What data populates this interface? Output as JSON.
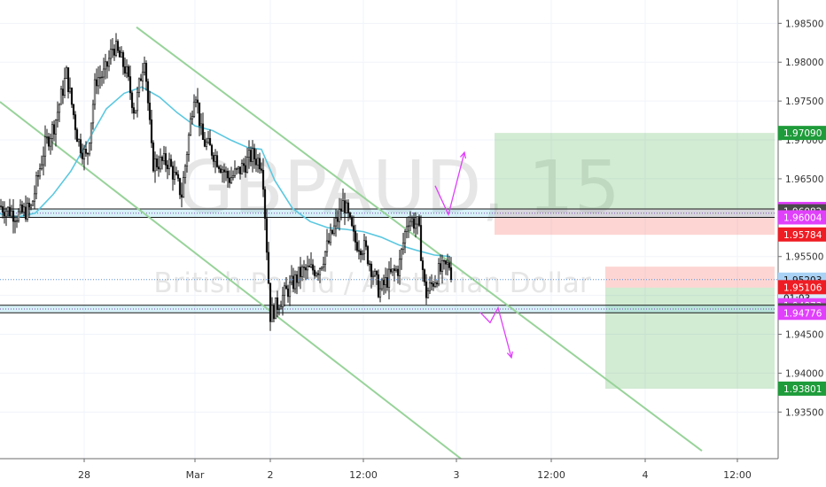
{
  "chart_data": {
    "type": "candlestick",
    "symbol_watermark": "GBPAUD, 15",
    "name_watermark": "British Pound / Australian Dollar",
    "x_axis": {
      "labels": [
        {
          "text": "28",
          "t": 95
        },
        {
          "text": "Mar",
          "t": 220
        },
        {
          "text": "2",
          "t": 305
        },
        {
          "text": "12:00",
          "t": 410
        },
        {
          "text": "3",
          "t": 515
        },
        {
          "text": "12:00",
          "t": 622
        },
        {
          "text": "4",
          "t": 728
        },
        {
          "text": "12:00",
          "t": 832
        }
      ],
      "range": [
        0,
        878
      ]
    },
    "y_axis": {
      "range": [
        1.929,
        1.988
      ],
      "ticks": [
        "1.98500",
        "1.98000",
        "1.97500",
        "1.97000",
        "1.96500",
        "1.96000",
        "1.95500",
        "1.95000",
        "1.94500",
        "1.94000",
        "1.93500"
      ]
    },
    "price_badges": [
      {
        "text": "1.97090",
        "value": 1.9709,
        "bg": "#1e9b3a",
        "fg": "#ffffff"
      },
      {
        "text": "1.96112",
        "value": 1.96112,
        "bg": "#e040fb",
        "fg": "#ffffff"
      },
      {
        "text": "1.96082",
        "value": 1.96082,
        "bg": "#4a4a4a",
        "fg": "#ffffff"
      },
      {
        "text": "1.96004",
        "value": 1.96004,
        "bg": "#e040fb",
        "fg": "#ffffff"
      },
      {
        "text": "1.95784",
        "value": 1.95784,
        "bg": "#ef1c24",
        "fg": "#ffffff"
      },
      {
        "text": "1.95203",
        "value": 1.95203,
        "bg": "#a9d2f5",
        "fg": "#111111"
      },
      {
        "text": "01:03",
        "value": 1.9497,
        "bg": "#d9ecfb",
        "fg": "#111111"
      },
      {
        "text": "1.95106",
        "value": 1.95106,
        "bg": "#ef1c24",
        "fg": "#ffffff"
      },
      {
        "text": "1.94873",
        "value": 1.94873,
        "bg": "#e040fb",
        "fg": "#ffffff"
      },
      {
        "text": "1.94808",
        "value": 1.94808,
        "bg": "#4a4a4a",
        "fg": "#ffffff"
      },
      {
        "text": "1.94776",
        "value": 1.94776,
        "bg": "#e040fb",
        "fg": "#ffffff"
      },
      {
        "text": "1.93801",
        "value": 1.93801,
        "bg": "#1e9b3a",
        "fg": "#ffffff"
      }
    ],
    "zones": [
      {
        "kind": "profit",
        "t1": 558,
        "t2": 874,
        "p1": 1.9709,
        "p2": 1.9611
      },
      {
        "kind": "stop",
        "t1": 558,
        "t2": 874,
        "p1": 1.9611,
        "p2": 1.9578
      },
      {
        "kind": "stop",
        "t1": 683,
        "t2": 874,
        "p1": 1.9537,
        "p2": 1.951
      },
      {
        "kind": "profit",
        "t1": 683,
        "t2": 874,
        "p1": 1.951,
        "p2": 1.938
      }
    ],
    "support_resistance_bands": [
      {
        "p_top": 1.96112,
        "p_bottom": 1.96004,
        "t1": 0,
        "t2": 874
      },
      {
        "p_top": 1.94873,
        "p_bottom": 1.94776,
        "t1": 0,
        "t2": 874
      }
    ],
    "trend_lines": [
      {
        "t1": 154,
        "p1": 1.9845,
        "t2": 792,
        "p2": 1.93
      },
      {
        "t1": 0,
        "p1": 1.9749,
        "t2": 520,
        "p2": 1.929
      }
    ],
    "current_price": 1.95203,
    "projection_arrows": [
      {
        "points": [
          [
            491,
            1.9641
          ],
          [
            506,
            1.9604
          ],
          [
            524,
            1.9684
          ]
        ]
      },
      {
        "points": [
          [
            542,
            1.9478
          ],
          [
            553,
            1.9465
          ],
          [
            562,
            1.9484
          ],
          [
            577,
            1.942
          ]
        ]
      }
    ],
    "moving_average": {
      "color": "#5bc8e0",
      "points": [
        [
          0,
          1.9605
        ],
        [
          20,
          1.9601
        ],
        [
          40,
          1.9606
        ],
        [
          60,
          1.963
        ],
        [
          80,
          1.966
        ],
        [
          100,
          1.97
        ],
        [
          120,
          1.974
        ],
        [
          140,
          1.976
        ],
        [
          160,
          1.9768
        ],
        [
          180,
          1.9755
        ],
        [
          200,
          1.9735
        ],
        [
          220,
          1.9718
        ],
        [
          240,
          1.9712
        ],
        [
          260,
          1.97
        ],
        [
          280,
          1.969
        ],
        [
          295,
          1.9688
        ],
        [
          310,
          1.9648
        ],
        [
          330,
          1.9612
        ],
        [
          350,
          1.9595
        ],
        [
          370,
          1.9587
        ],
        [
          390,
          1.9585
        ],
        [
          410,
          1.9582
        ],
        [
          430,
          1.9575
        ],
        [
          450,
          1.9565
        ],
        [
          470,
          1.9558
        ],
        [
          490,
          1.9552
        ],
        [
          508,
          1.955
        ]
      ]
    },
    "candles_anchor": [
      [
        0,
        1.9615
      ],
      [
        20,
        1.9603
      ],
      [
        35,
        1.9612
      ],
      [
        50,
        1.969
      ],
      [
        62,
        1.9722
      ],
      [
        75,
        1.9785
      ],
      [
        88,
        1.97
      ],
      [
        98,
        1.9675
      ],
      [
        108,
        1.9778
      ],
      [
        118,
        1.9785
      ],
      [
        128,
        1.9822
      ],
      [
        142,
        1.979
      ],
      [
        152,
        1.9735
      ],
      [
        163,
        1.981
      ],
      [
        172,
        1.967
      ],
      [
        190,
        1.9672
      ],
      [
        205,
        1.963
      ],
      [
        220,
        1.977
      ],
      [
        228,
        1.97
      ],
      [
        240,
        1.9685
      ],
      [
        258,
        1.965
      ],
      [
        270,
        1.966
      ],
      [
        284,
        1.968
      ],
      [
        296,
        1.967
      ],
      [
        305,
        1.9475
      ],
      [
        320,
        1.95
      ],
      [
        340,
        1.953
      ],
      [
        360,
        1.9535
      ],
      [
        375,
        1.958
      ],
      [
        388,
        1.962
      ],
      [
        400,
        1.957
      ],
      [
        412,
        1.956
      ],
      [
        428,
        1.9505
      ],
      [
        440,
        1.9525
      ],
      [
        450,
        1.9535
      ],
      [
        460,
        1.96
      ],
      [
        472,
        1.959
      ],
      [
        480,
        1.95
      ],
      [
        495,
        1.953
      ],
      [
        508,
        1.954
      ],
      [
        510,
        1.952
      ]
    ]
  }
}
